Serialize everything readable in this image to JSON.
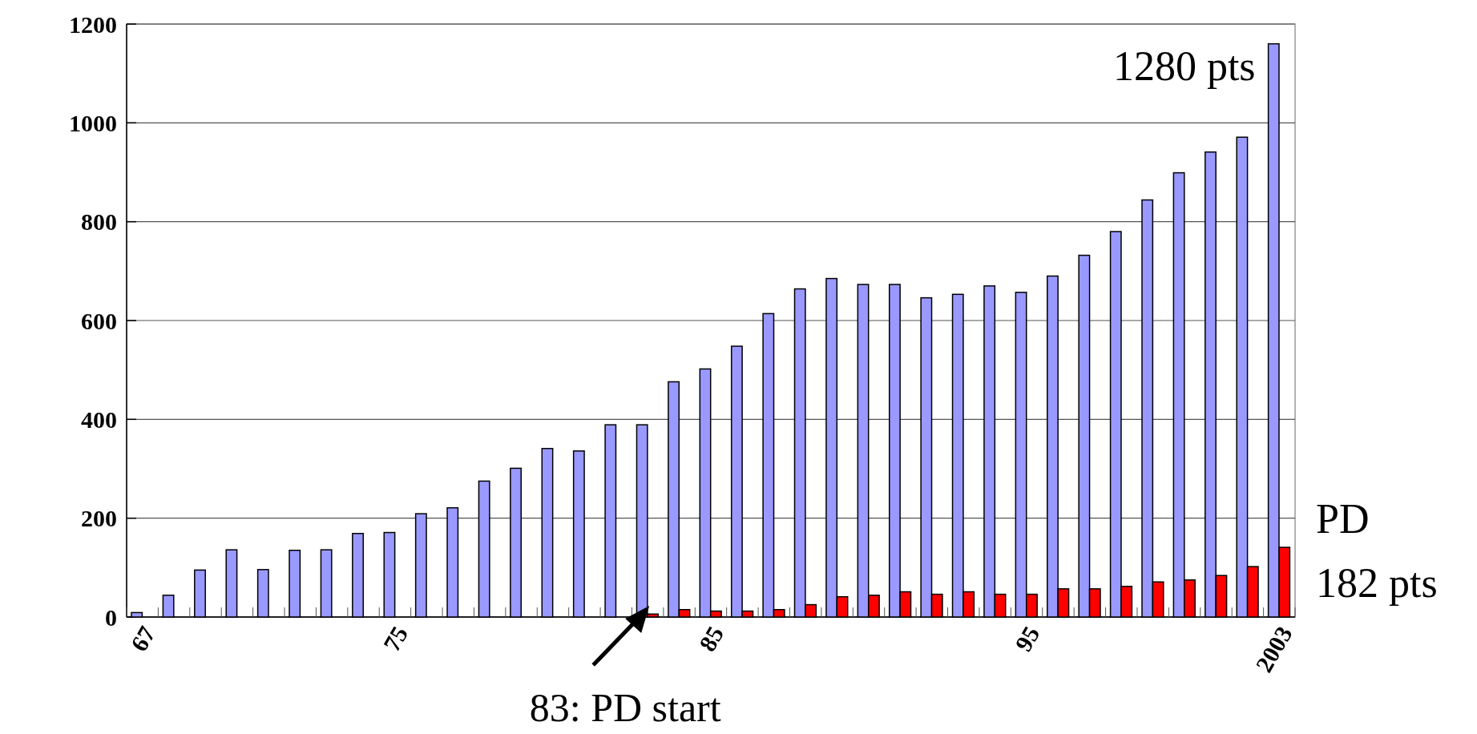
{
  "chart_data": {
    "type": "bar",
    "categories": [
      "67",
      null,
      null,
      null,
      null,
      null,
      null,
      null,
      "75",
      null,
      null,
      null,
      null,
      null,
      null,
      null,
      null,
      null,
      "85",
      null,
      null,
      null,
      null,
      null,
      null,
      null,
      null,
      null,
      "95",
      null,
      null,
      null,
      null,
      null,
      null,
      null,
      "2003"
    ],
    "series": [
      {
        "color": "#9999ff",
        "values": [
          9,
          44,
          95,
          136,
          96,
          135,
          136,
          169,
          171,
          209,
          221,
          275,
          301,
          341,
          336,
          389,
          389,
          476,
          502,
          548,
          614,
          664,
          685,
          673,
          673,
          646,
          653,
          670,
          657,
          690,
          732,
          780,
          844,
          899,
          941,
          971,
          1160
        ]
      },
      {
        "name": "PD",
        "color": "#ff0000",
        "values": [
          null,
          null,
          null,
          null,
          null,
          null,
          null,
          null,
          null,
          null,
          null,
          null,
          null,
          null,
          null,
          null,
          6,
          15,
          12,
          12,
          15,
          25,
          41,
          44,
          51,
          46,
          51,
          46,
          46,
          57,
          57,
          62,
          71,
          75,
          84,
          102,
          141
        ]
      }
    ],
    "ylim": [
      0,
      1200
    ],
    "yticks": [
      0,
      200,
      400,
      600,
      800,
      1000,
      1200
    ],
    "grid": "y",
    "annotations": [
      "1280 pts",
      "182 pts",
      "83: PD start"
    ]
  }
}
